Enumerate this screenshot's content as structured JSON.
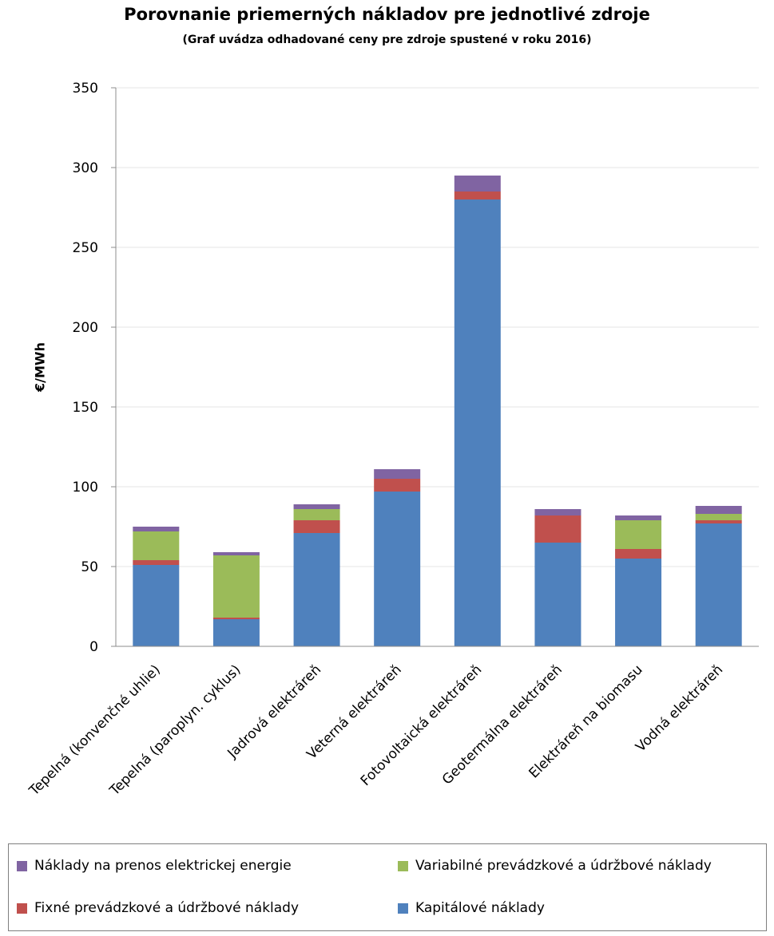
{
  "chart_data": {
    "type": "bar",
    "stacked": true,
    "title": "Porovnanie priemerných nákladov pre jednotlivé zdroje",
    "subtitle": "(Graf uvádza odhadované ceny pre zdroje spustené v roku 2016)",
    "ylabel": "€/MWh",
    "ylim": [
      0,
      350
    ],
    "yticks": [
      "0",
      "50",
      "100",
      "150",
      "200",
      "250",
      "300",
      "350"
    ],
    "grid": true,
    "legend_position": "bottom",
    "categories": [
      "Tepelná (konvenčné uhlie)",
      "Tepelná (paroplyn. cyklus)",
      "Jadrová elektráreň",
      "Veterná elektráreň",
      "Fotovoltaická elektráreň",
      "Geotermálna elektráreň",
      "Elektráreň na biomasu",
      "Vodná elektráreň"
    ],
    "series": [
      {
        "name": "Kapitálové náklady",
        "color": "#4f81bd",
        "values": [
          51,
          17,
          71,
          97,
          280,
          65,
          55,
          77
        ]
      },
      {
        "name": "Fixné prevádzkové a údržbové náklady",
        "color": "#c0504d",
        "values": [
          3,
          1,
          8,
          8,
          5,
          17,
          6,
          2
        ]
      },
      {
        "name": "Variabilné prevádzkové a údržbové náklady",
        "color": "#9bbb59",
        "values": [
          18,
          39,
          7,
          0,
          0,
          0,
          18,
          4
        ]
      },
      {
        "name": "Náklady na prenos elektrickej energie",
        "color": "#8064a2",
        "values": [
          3,
          2,
          3,
          6,
          10,
          4,
          3,
          5
        ]
      }
    ]
  }
}
